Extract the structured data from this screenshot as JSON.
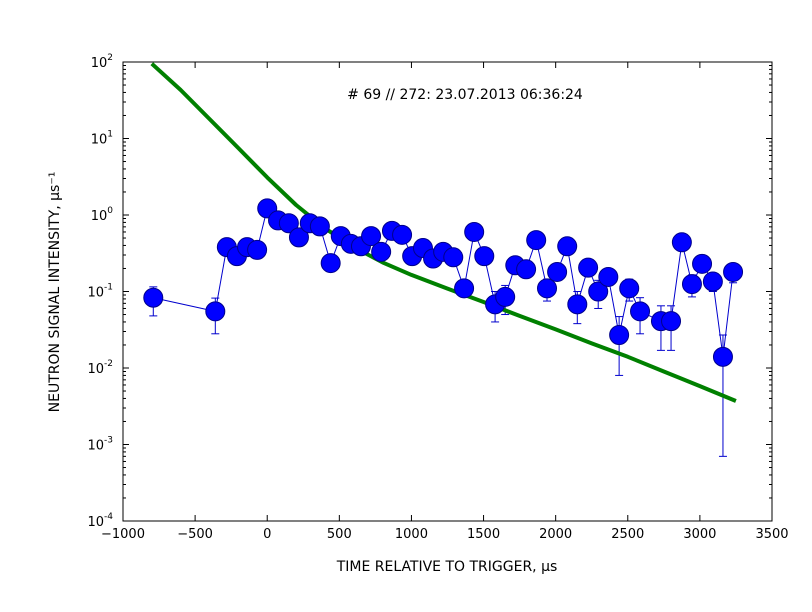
{
  "chart_data": {
    "type": "scatter",
    "annotation": "# 69 // 272: 23.07.2013 06:36:24",
    "xlabel": "TIME RELATIVE TO TRIGGER, μs",
    "ylabel": "NEUTRON SIGNAL INTENSITY, μs⁻¹",
    "xlim": [
      -1000,
      3500
    ],
    "ylim": [
      0.0001,
      100
    ],
    "yscale": "log",
    "grid": false,
    "legend": "none",
    "x_ticks": [
      {
        "value": -1000,
        "label": "−1000"
      },
      {
        "value": -500,
        "label": "−500"
      },
      {
        "value": 0,
        "label": "0"
      },
      {
        "value": 500,
        "label": "500"
      },
      {
        "value": 1000,
        "label": "1000"
      },
      {
        "value": 1500,
        "label": "1500"
      },
      {
        "value": 2000,
        "label": "2000"
      },
      {
        "value": 2500,
        "label": "2500"
      },
      {
        "value": 3000,
        "label": "3000"
      },
      {
        "value": 3500,
        "label": "3500"
      }
    ],
    "y_ticks": [
      {
        "value": 0.0001,
        "base": "10",
        "exp": "-4"
      },
      {
        "value": 0.001,
        "base": "10",
        "exp": "-3"
      },
      {
        "value": 0.01,
        "base": "10",
        "exp": "-2"
      },
      {
        "value": 0.1,
        "base": "10",
        "exp": "-1"
      },
      {
        "value": 1,
        "base": "10",
        "exp": "0"
      },
      {
        "value": 10,
        "base": "10",
        "exp": "1"
      },
      {
        "value": 100,
        "base": "10",
        "exp": "2"
      }
    ],
    "series": [
      {
        "kind": "data",
        "color": "#0000ff",
        "edge_color": "#00008b",
        "line_color": "#0000cd",
        "points": [
          {
            "x": -790,
            "y": 0.083,
            "lo": 0.048,
            "hi": 0.115
          },
          {
            "x": -360,
            "y": 0.055,
            "lo": 0.028,
            "hi": 0.082
          },
          {
            "x": -280,
            "y": 0.38
          },
          {
            "x": -210,
            "y": 0.29
          },
          {
            "x": -140,
            "y": 0.38
          },
          {
            "x": -70,
            "y": 0.35
          },
          {
            "x": 0,
            "y": 1.22
          },
          {
            "x": 75,
            "y": 0.85
          },
          {
            "x": 150,
            "y": 0.78
          },
          {
            "x": 220,
            "y": 0.51
          },
          {
            "x": 295,
            "y": 0.78
          },
          {
            "x": 365,
            "y": 0.71
          },
          {
            "x": 440,
            "y": 0.235
          },
          {
            "x": 510,
            "y": 0.53
          },
          {
            "x": 580,
            "y": 0.42
          },
          {
            "x": 650,
            "y": 0.39
          },
          {
            "x": 720,
            "y": 0.53
          },
          {
            "x": 790,
            "y": 0.33
          },
          {
            "x": 865,
            "y": 0.62
          },
          {
            "x": 935,
            "y": 0.55
          },
          {
            "x": 1005,
            "y": 0.29
          },
          {
            "x": 1080,
            "y": 0.37
          },
          {
            "x": 1150,
            "y": 0.27
          },
          {
            "x": 1220,
            "y": 0.33
          },
          {
            "x": 1290,
            "y": 0.28
          },
          {
            "x": 1365,
            "y": 0.11
          },
          {
            "x": 1435,
            "y": 0.6
          },
          {
            "x": 1505,
            "y": 0.29
          },
          {
            "x": 1580,
            "y": 0.068,
            "lo": 0.04,
            "hi": 0.1
          },
          {
            "x": 1650,
            "y": 0.085,
            "lo": 0.05,
            "hi": 0.12
          },
          {
            "x": 1720,
            "y": 0.22
          },
          {
            "x": 1795,
            "y": 0.195
          },
          {
            "x": 1865,
            "y": 0.47
          },
          {
            "x": 1940,
            "y": 0.11,
            "lo": 0.075,
            "hi": 0.145
          },
          {
            "x": 2010,
            "y": 0.18
          },
          {
            "x": 2080,
            "y": 0.39
          },
          {
            "x": 2150,
            "y": 0.068,
            "lo": 0.038,
            "hi": 0.1
          },
          {
            "x": 2225,
            "y": 0.205
          },
          {
            "x": 2295,
            "y": 0.1,
            "lo": 0.06,
            "hi": 0.14
          },
          {
            "x": 2365,
            "y": 0.155
          },
          {
            "x": 2440,
            "y": 0.027,
            "lo": 0.008,
            "hi": 0.047
          },
          {
            "x": 2510,
            "y": 0.11,
            "lo": 0.075,
            "hi": 0.145
          },
          {
            "x": 2585,
            "y": 0.055,
            "lo": 0.028,
            "hi": 0.083
          },
          {
            "x": 2730,
            "y": 0.041,
            "lo": 0.017,
            "hi": 0.065
          },
          {
            "x": 2800,
            "y": 0.041,
            "lo": 0.017,
            "hi": 0.065
          },
          {
            "x": 2875,
            "y": 0.44
          },
          {
            "x": 2945,
            "y": 0.125,
            "lo": 0.085,
            "hi": 0.165
          },
          {
            "x": 3015,
            "y": 0.23
          },
          {
            "x": 3090,
            "y": 0.135,
            "lo": 0.1,
            "hi": 0.17
          },
          {
            "x": 3160,
            "y": 0.014,
            "lo": 0.0007,
            "hi": 0.027
          },
          {
            "x": 3230,
            "y": 0.18,
            "lo": 0.13,
            "hi": 0.23
          }
        ]
      },
      {
        "kind": "model",
        "color": "#008000",
        "x": [
          -800,
          -600,
          -400,
          -200,
          0,
          200,
          400,
          600,
          800,
          1000,
          1250,
          1500,
          1750,
          2000,
          2250,
          2500,
          2750,
          3000,
          3250
        ],
        "y": [
          95,
          43,
          18,
          7.5,
          3.1,
          1.35,
          0.67,
          0.38,
          0.24,
          0.165,
          0.109,
          0.073,
          0.048,
          0.032,
          0.021,
          0.014,
          0.009,
          0.0058,
          0.0037
        ]
      }
    ]
  }
}
